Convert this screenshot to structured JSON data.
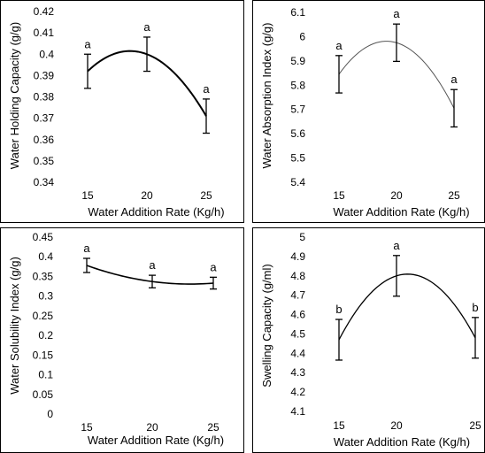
{
  "chart_data": [
    {
      "type": "line",
      "title": "",
      "xlabel": "Water Addition Rate (Kg/h)",
      "ylabel": "Water Holding Capacity (g/g)",
      "categories": [
        "15",
        "20",
        "25"
      ],
      "x": [
        15,
        20,
        25
      ],
      "ylim": [
        0.34,
        0.42
      ],
      "yticks": [
        "0.34",
        "0.35",
        "0.36",
        "0.37",
        "0.38",
        "0.39",
        "0.4",
        "0.41",
        "0.42"
      ],
      "series": [
        {
          "values": [
            0.392,
            0.4,
            0.371
          ],
          "errors": [
            0.008,
            0.008,
            0.008
          ],
          "letters": [
            "a",
            "a",
            "a"
          ]
        }
      ],
      "color": "#000000",
      "line_width": 2,
      "grid": false
    },
    {
      "type": "line",
      "title": "",
      "xlabel": "Water Addition Rate (Kg/h)",
      "ylabel": "Water Absorption Index (g/g)",
      "categories": [
        "15",
        "20",
        "25"
      ],
      "x": [
        15,
        20,
        25
      ],
      "ylim": [
        5.4,
        6.1
      ],
      "yticks": [
        "5.4",
        "5.5",
        "5.6",
        "5.7",
        "5.8",
        "5.9",
        "6",
        "6.1"
      ],
      "series": [
        {
          "values": [
            5.845,
            5.975,
            5.705
          ],
          "errors": [
            0.077,
            0.077,
            0.077
          ],
          "letters": [
            "a",
            "a",
            "a"
          ]
        }
      ],
      "color": "#555555",
      "line_width": 1,
      "grid": false
    },
    {
      "type": "line",
      "title": "",
      "xlabel": "Water Addition Rate (Kg/h)",
      "ylabel": "Water Solubility Index (g/g)",
      "categories": [
        "15",
        "20",
        "25"
      ],
      "x": [
        15,
        20,
        25
      ],
      "ylim": [
        0,
        0.45
      ],
      "yticks": [
        "0",
        "0.05",
        "0.1",
        "0.15",
        "0.2",
        "0.25",
        "0.3",
        "0.35",
        "0.4",
        "0.45"
      ],
      "series": [
        {
          "values": [
            0.378,
            0.337,
            0.333
          ],
          "errors": [
            0.018,
            0.016,
            0.015
          ],
          "letters": [
            "a",
            "a",
            "a"
          ]
        }
      ],
      "color": "#000000",
      "line_width": 1.6,
      "grid": false
    },
    {
      "type": "line",
      "title": "",
      "xlabel": "Water Addition Rate (Kg/h)",
      "ylabel": "Swelling Capacity (g/ml)",
      "categories": [
        "15",
        "20",
        "25"
      ],
      "x": [
        15,
        20,
        25
      ],
      "ylim": [
        4.1,
        5
      ],
      "yticks": [
        "4.1",
        "4.2",
        "4.3",
        "4.4",
        "4.5",
        "4.6",
        "4.7",
        "4.8",
        "4.9",
        "5"
      ],
      "series": [
        {
          "values": [
            4.47,
            4.8,
            4.48
          ],
          "errors": [
            0.105,
            0.105,
            0.105
          ],
          "letters": [
            "b",
            "a",
            "b"
          ]
        }
      ],
      "color": "#000000",
      "line_width": 1.3,
      "grid": false
    }
  ]
}
